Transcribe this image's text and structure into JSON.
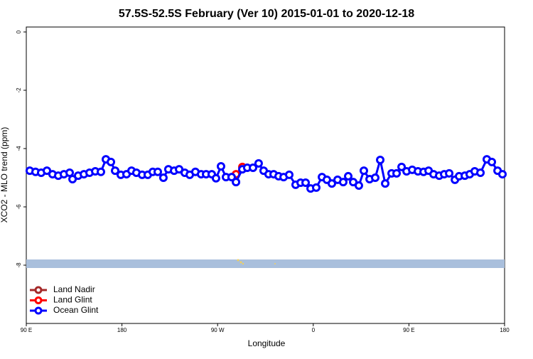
{
  "chart_data": {
    "type": "line",
    "title": "57.5S-52.5S February (Ver 10)   2015-01-01 to 2020-12-18",
    "x_label": "Longitude",
    "y_label": "XCO2 - MLO trend (ppm)",
    "xlim": [
      90,
      540
    ],
    "ylim": [
      -10,
      0.17
    ],
    "xticks": [
      {
        "value": 90,
        "label": "90 E"
      },
      180,
      {
        "value": 270,
        "label": "90 W"
      },
      {
        "value": 360,
        "label": "0"
      },
      {
        "value": 450,
        "label": "90 E"
      },
      {
        "value": 540,
        "label": "180"
      }
    ],
    "yticks": [
      0,
      -2,
      -4,
      -6,
      -8
    ],
    "legend": "bottom-left",
    "series": [
      {
        "name": "Land Nadir",
        "color": "#a52a2a",
        "x": [],
        "values": []
      },
      {
        "name": "Land Glint",
        "color": "#ff0000",
        "x": [
          287.3,
          293.3
        ],
        "values": [
          -4.88,
          -4.63
        ]
      },
      {
        "name": "Ocean Glint",
        "color": "#0000ff",
        "x": [
          93.3,
          98.7,
          104.0,
          109.4,
          114.7,
          120.1,
          125.4,
          130.8,
          133.5,
          138.8,
          144.2,
          149.5,
          154.9,
          160.2,
          164.9,
          169.6,
          173.6,
          178.9,
          184.3,
          189.0,
          193.6,
          199.0,
          204.3,
          209.0,
          213.7,
          219.0,
          223.7,
          229.1,
          233.8,
          239.1,
          243.8,
          249.1,
          254.5,
          259.2,
          264.5,
          268.5,
          273.2,
          277.9,
          283.2,
          287.3,
          293.3,
          297.9,
          303.3,
          308.6,
          313.3,
          318.0,
          322.7,
          327.4,
          332.1,
          337.4,
          343.4,
          348.1,
          352.8,
          357.5,
          362.8,
          368.2,
          372.8,
          377.5,
          382.9,
          388.2,
          392.9,
          397.6,
          402.9,
          407.6,
          413.0,
          418.3,
          423.0,
          427.7,
          433.7,
          438.4,
          443.1,
          447.8,
          453.1,
          458.5,
          463.8,
          468.5,
          473.2,
          478.5,
          483.2,
          487.9,
          493.3,
          497.2,
          502.6,
          507.2,
          511.9,
          517.3,
          523.3,
          528.0,
          533.4,
          538.0
        ],
        "values": [
          -4.76,
          -4.8,
          -4.83,
          -4.76,
          -4.88,
          -4.93,
          -4.88,
          -4.83,
          -5.05,
          -4.93,
          -4.88,
          -4.83,
          -4.78,
          -4.8,
          -4.37,
          -4.46,
          -4.76,
          -4.9,
          -4.88,
          -4.76,
          -4.83,
          -4.9,
          -4.9,
          -4.8,
          -4.8,
          -5.0,
          -4.71,
          -4.76,
          -4.71,
          -4.83,
          -4.9,
          -4.8,
          -4.88,
          -4.88,
          -4.88,
          -5.02,
          -4.61,
          -4.98,
          -4.98,
          -5.15,
          -4.71,
          -4.66,
          -4.66,
          -4.51,
          -4.76,
          -4.88,
          -4.88,
          -4.95,
          -4.98,
          -4.9,
          -5.24,
          -5.17,
          -5.17,
          -5.37,
          -5.34,
          -4.98,
          -5.07,
          -5.2,
          -5.07,
          -5.15,
          -4.95,
          -5.15,
          -5.27,
          -4.76,
          -5.05,
          -5.0,
          -4.39,
          -5.2,
          -4.85,
          -4.85,
          -4.63,
          -4.78,
          -4.73,
          -4.78,
          -4.8,
          -4.76,
          -4.88,
          -4.93,
          -4.88,
          -4.85,
          -5.07,
          -4.95,
          -4.93,
          -4.88,
          -4.78,
          -4.83,
          -4.37,
          -4.46,
          -4.76,
          -4.88
        ]
      }
    ]
  }
}
